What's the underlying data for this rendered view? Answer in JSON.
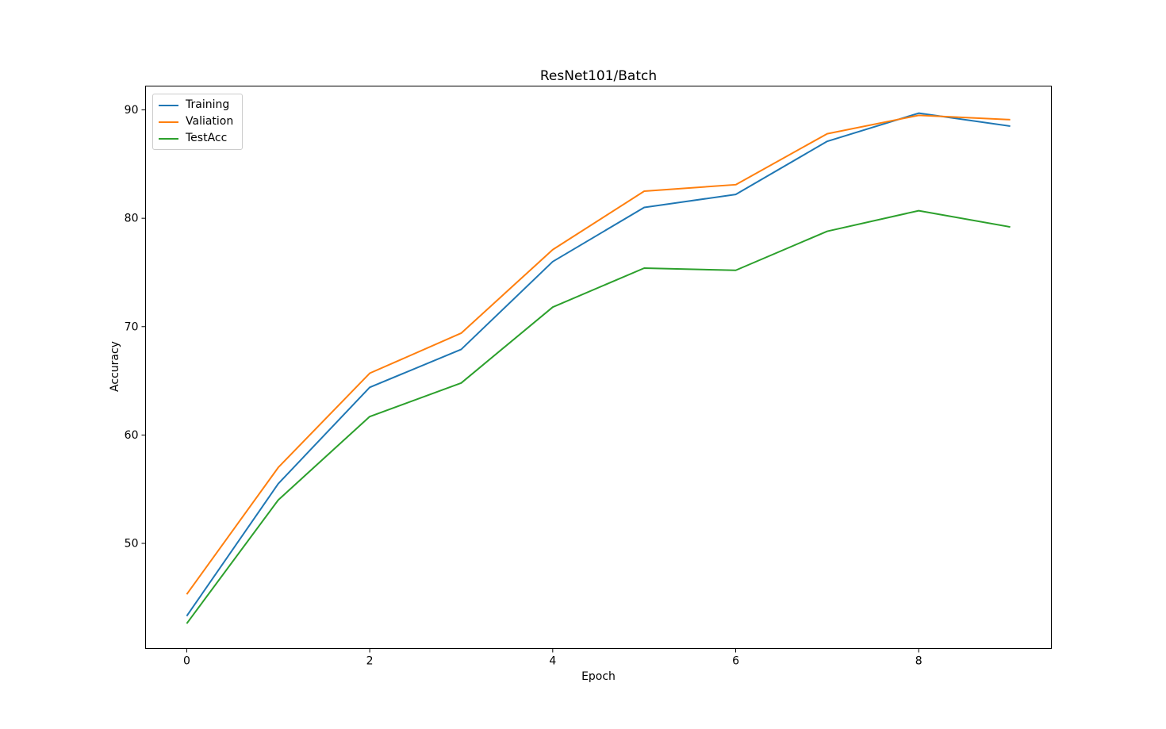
{
  "chart_data": {
    "type": "line",
    "title": "ResNet101/Batch",
    "xlabel": "Epoch",
    "ylabel": "Accuracy",
    "x": [
      0,
      1,
      2,
      3,
      4,
      5,
      6,
      7,
      8,
      9
    ],
    "series": [
      {
        "name": "Training",
        "color": "#1f77b4",
        "values": [
          43.3,
          55.5,
          64.4,
          67.9,
          76.0,
          81.0,
          82.2,
          87.1,
          89.7,
          88.5
        ]
      },
      {
        "name": "Valiation",
        "color": "#ff7f0e",
        "values": [
          45.3,
          57.0,
          65.7,
          69.4,
          77.1,
          82.5,
          83.1,
          87.8,
          89.5,
          89.1
        ]
      },
      {
        "name": "TestAcc",
        "color": "#2ca02c",
        "values": [
          42.6,
          54.0,
          61.7,
          64.8,
          71.8,
          75.4,
          75.2,
          78.8,
          80.7,
          79.2
        ]
      }
    ],
    "xticks": [
      0,
      2,
      4,
      6,
      8
    ],
    "yticks": [
      50,
      60,
      70,
      80,
      90
    ],
    "xlim": [
      -0.45,
      9.45
    ],
    "ylim": [
      40.3,
      92.2
    ],
    "grid": false,
    "legend_position": "upper left",
    "axis_color": "#000000",
    "background_color": "#ffffff"
  }
}
